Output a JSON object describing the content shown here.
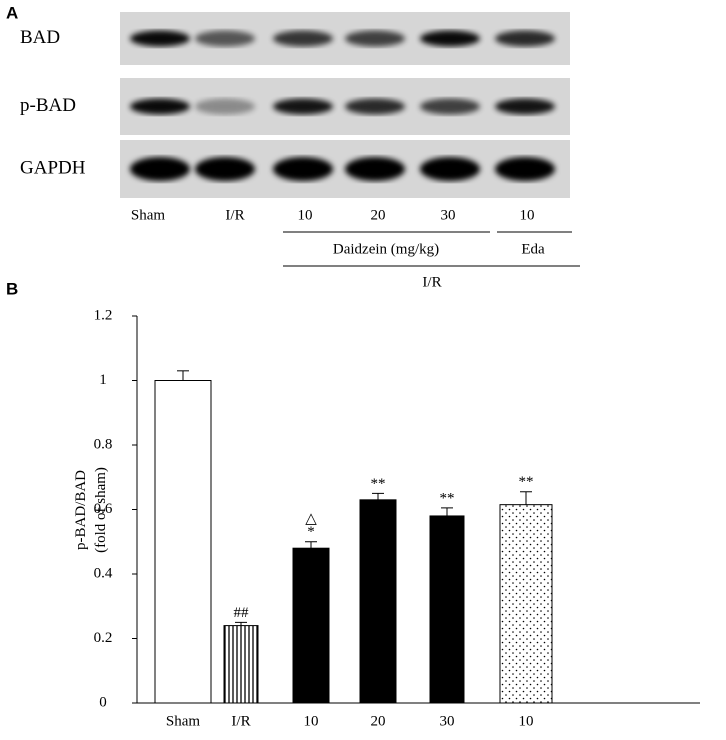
{
  "blot": {
    "label": "A",
    "rows": [
      "BAD",
      "p-BAD",
      "GAPDH"
    ],
    "lanes": [
      "Sham",
      "I/R",
      "10",
      "20",
      "30",
      "10"
    ],
    "groups": [
      "Daidzein (mg/kg)",
      "Eda"
    ],
    "treatment": "I/R"
  },
  "chart_data": {
    "type": "bar",
    "label": "B",
    "ylabel": [
      "p-BAD/BAD",
      "(fold of sham)"
    ],
    "categories": [
      "Sham",
      "I/R",
      "10",
      "20",
      "30",
      "10"
    ],
    "values": [
      1.0,
      0.24,
      0.48,
      0.63,
      0.58,
      0.615
    ],
    "errors": [
      0.03,
      0.01,
      0.02,
      0.02,
      0.025,
      0.04
    ],
    "fills": [
      "white",
      "stripes",
      "black",
      "black",
      "black",
      "dots"
    ],
    "annotations": [
      null,
      "##",
      "*",
      "**",
      "**",
      "**"
    ],
    "annotations_upper": [
      null,
      null,
      "△",
      null,
      null,
      null
    ],
    "ylim": [
      0,
      1.2
    ],
    "yticks": [
      0,
      0.2,
      0.4,
      0.6,
      0.8,
      1,
      1.2
    ]
  }
}
